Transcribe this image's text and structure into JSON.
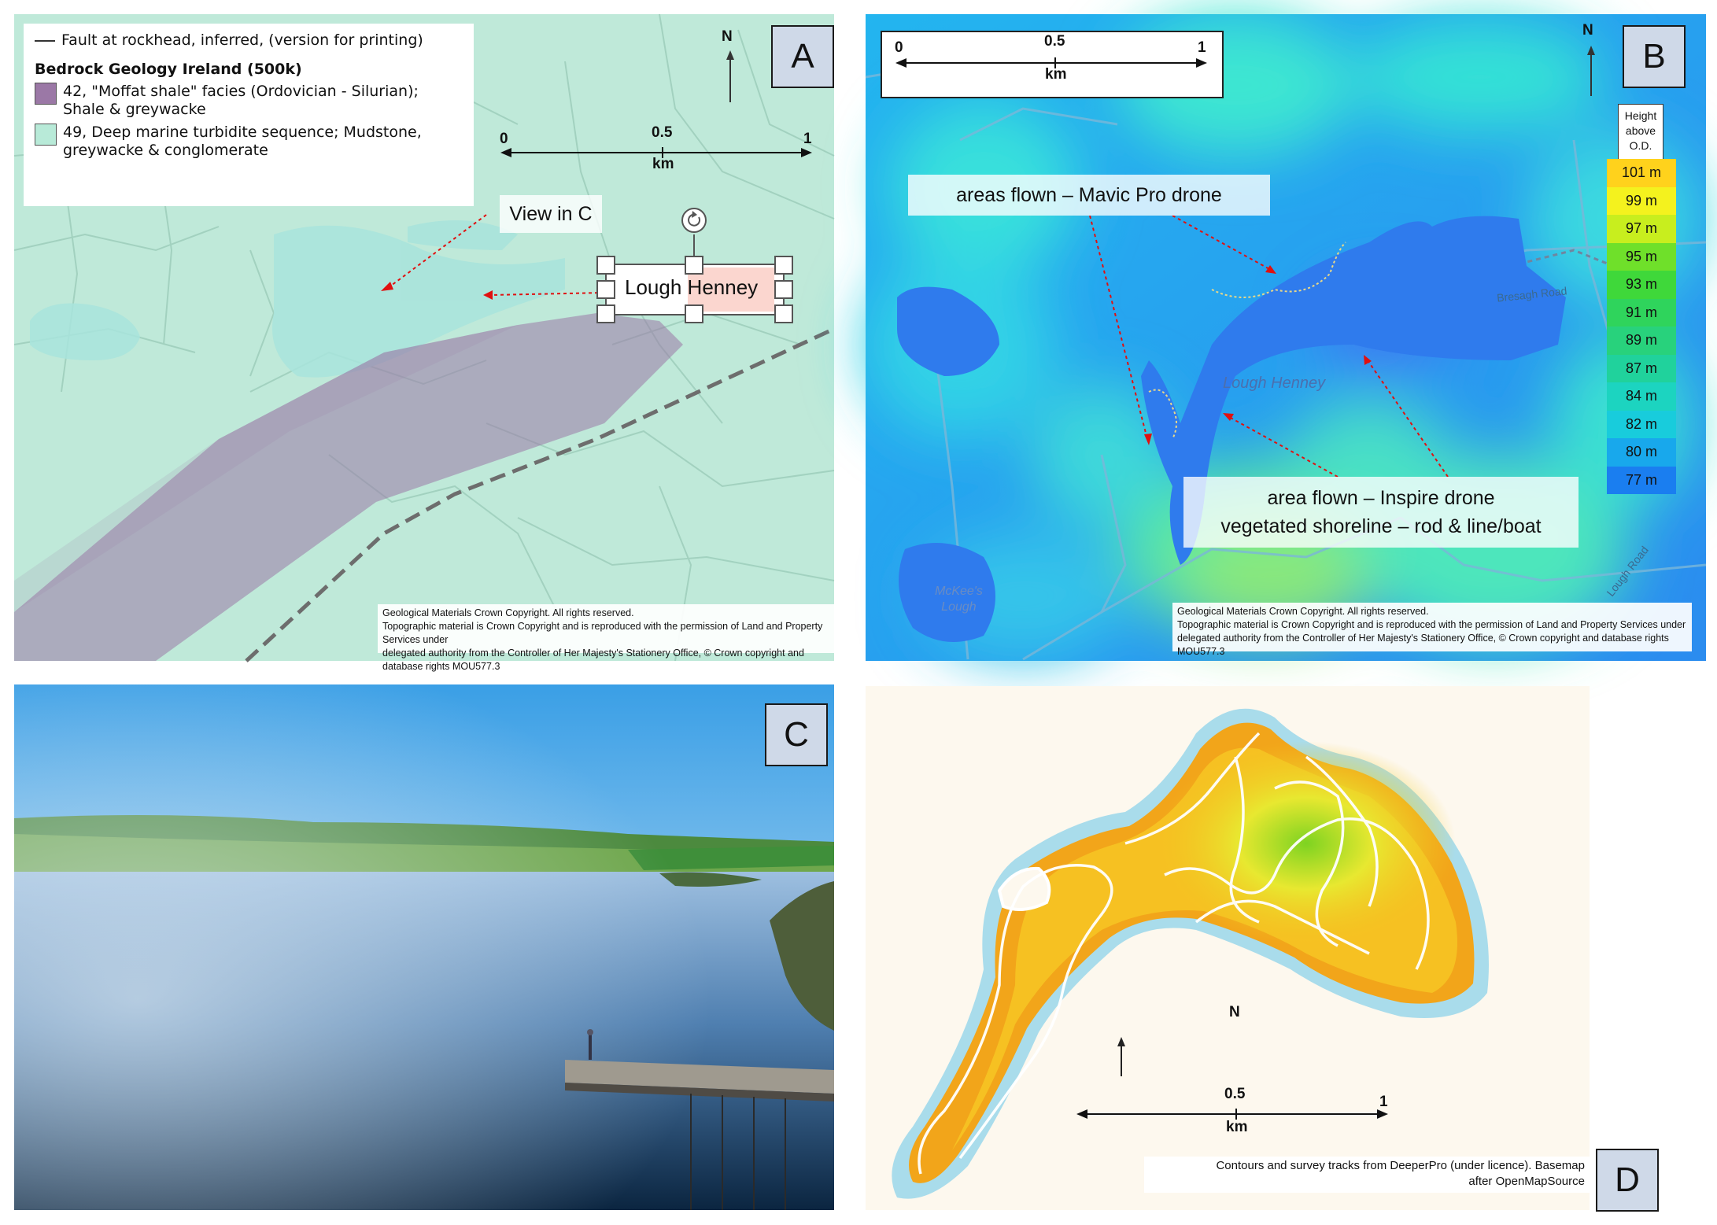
{
  "panel_a": {
    "label": "A",
    "fault_legend": "Fault at rockhead, inferred, (version for printing)",
    "legend_title": "Bedrock Geology Ireland (500k)",
    "legend_items": [
      {
        "text_line1": "42, \"Moffat shale\" facies (Ordovician - Silurian);",
        "text_line2": "Shale & greywacke",
        "color": "#9b78a6"
      },
      {
        "text_line1": "49, Deep marine turbidite sequence; Mudstone,",
        "text_line2": "greywacke & conglomerate",
        "color": "#b8ead8"
      }
    ],
    "north": "N",
    "scale": {
      "t0": "0",
      "t05": "0.5",
      "t1": "1",
      "unit": "km"
    },
    "view_label": "View in C",
    "lake_label_1": "Lough",
    "lake_label_2": "Henney",
    "copyright": [
      "Geological Materials Crown Copyright. All rights reserved.",
      "Topographic material is Crown Copyright and is reproduced with the permission of Land and Property Services under",
      "delegated authority from the Controller of Her Majesty's Stationery Office, © Crown copyright and database rights MOU577.3"
    ]
  },
  "panel_b": {
    "label": "B",
    "north": "N",
    "scale": {
      "t0": "0",
      "t05": "0.5",
      "t1": "1",
      "unit": "km"
    },
    "mavic_label": "areas flown – Mavic Pro drone",
    "inspire_line1": "area flown – Inspire drone",
    "inspire_line2": "vegetated shoreline – rod & line/boat",
    "lake_name": "Lough Henney",
    "mckees_1": "McKee's",
    "mckees_2": "Lough",
    "road_1": "Bresagh Road",
    "road_2": "Lough Road",
    "height_title": [
      "Height",
      "above",
      "O.D."
    ],
    "height_legend": [
      {
        "label": "101 m",
        "color": "#ffd21c"
      },
      {
        "label": "99 m",
        "color": "#f4f21e"
      },
      {
        "label": "97 m",
        "color": "#c8ee1e"
      },
      {
        "label": "95 m",
        "color": "#6fe02a"
      },
      {
        "label": "93 m",
        "color": "#3fd83a"
      },
      {
        "label": "91 m",
        "color": "#2fd45c"
      },
      {
        "label": "89 m",
        "color": "#28d27c"
      },
      {
        "label": "87 m",
        "color": "#20d29c"
      },
      {
        "label": "84 m",
        "color": "#1cd4c0"
      },
      {
        "label": "82 m",
        "color": "#18ccdc"
      },
      {
        "label": "80 m",
        "color": "#18a8ec"
      },
      {
        "label": "77 m",
        "color": "#1a7ef0"
      }
    ],
    "copyright": [
      "Geological Materials Crown Copyright. All rights reserved.",
      "Topographic material is Crown Copyright and is reproduced with the permission of Land and Property Services under",
      "delegated authority from the Controller of Her Majesty's Stationery Office, © Crown copyright and database rights MOU577.3"
    ]
  },
  "panel_c": {
    "label": "C"
  },
  "panel_d": {
    "label": "D",
    "north": "N",
    "scale": {
      "t05": "0.5",
      "t1": "1",
      "unit": "km"
    },
    "credit_line1": "Contours and survey tracks from DeeperPro (under licence). Basemap",
    "credit_line2": "after OpenMapSource"
  }
}
